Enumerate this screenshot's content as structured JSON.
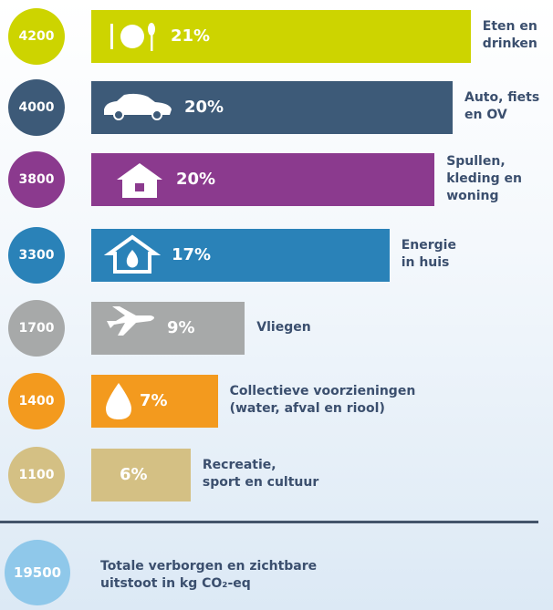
{
  "chart_data": {
    "type": "bar",
    "categories": [
      "Eten en\ndrinken",
      "Auto, fiets\nen OV",
      "Spullen,\nkleding en\nwoning",
      "Energie\nin huis",
      "Vliegen",
      "Collectieve voorzieningen\n(water, afval en riool)",
      "Recreatie,\nsport en cultuur"
    ],
    "values": [
      4200,
      4000,
      3800,
      3300,
      1700,
      1400,
      1100
    ],
    "shares": [
      21,
      20,
      20,
      17,
      9,
      7,
      6
    ],
    "share_labels": [
      "21%",
      "20%",
      "20%",
      "17%",
      "9%",
      "7%",
      "6%"
    ],
    "colors": [
      "#cdd400",
      "#3d5a78",
      "#8b3a8e",
      "#2a82b8",
      "#a7a9a9",
      "#f39a1e",
      "#d4c084"
    ],
    "total": {
      "value": 19500,
      "label": "Totale verborgen en zichtbare\nuitstoot in kg CO₂-eq",
      "color": "#8fc8ea"
    }
  }
}
